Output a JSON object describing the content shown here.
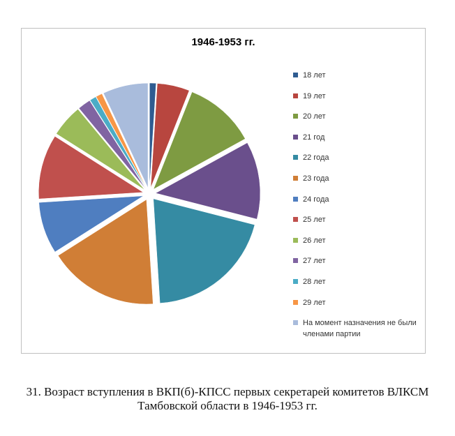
{
  "chart_data": {
    "type": "pie",
    "title": "1946-1953 гг.",
    "categories": [
      "18 лет",
      "19 лет",
      "20 лет",
      "21 год",
      "22 года",
      "23 года",
      "24 года",
      "25 лет",
      "26 лет",
      "27 лет",
      "28 лет",
      "29 лет",
      "На момент назначения не были членами партии"
    ],
    "values": [
      1,
      5,
      11,
      12,
      20,
      17,
      8,
      10,
      5,
      2,
      1,
      1,
      7
    ],
    "colors": [
      "#2f5c91",
      "#b8463f",
      "#7e9b42",
      "#6a4f8c",
      "#358ba3",
      "#d07e36",
      "#4f7ec0",
      "#c0504d",
      "#9bbb59",
      "#8064a2",
      "#4bacc6",
      "#f79646",
      "#a9bcdc"
    ]
  },
  "caption": "31. Возраст вступления в ВКП(б)-КПСС первых секретарей комитетов ВЛКСМ Тамбовской области в 1946-1953 гг."
}
